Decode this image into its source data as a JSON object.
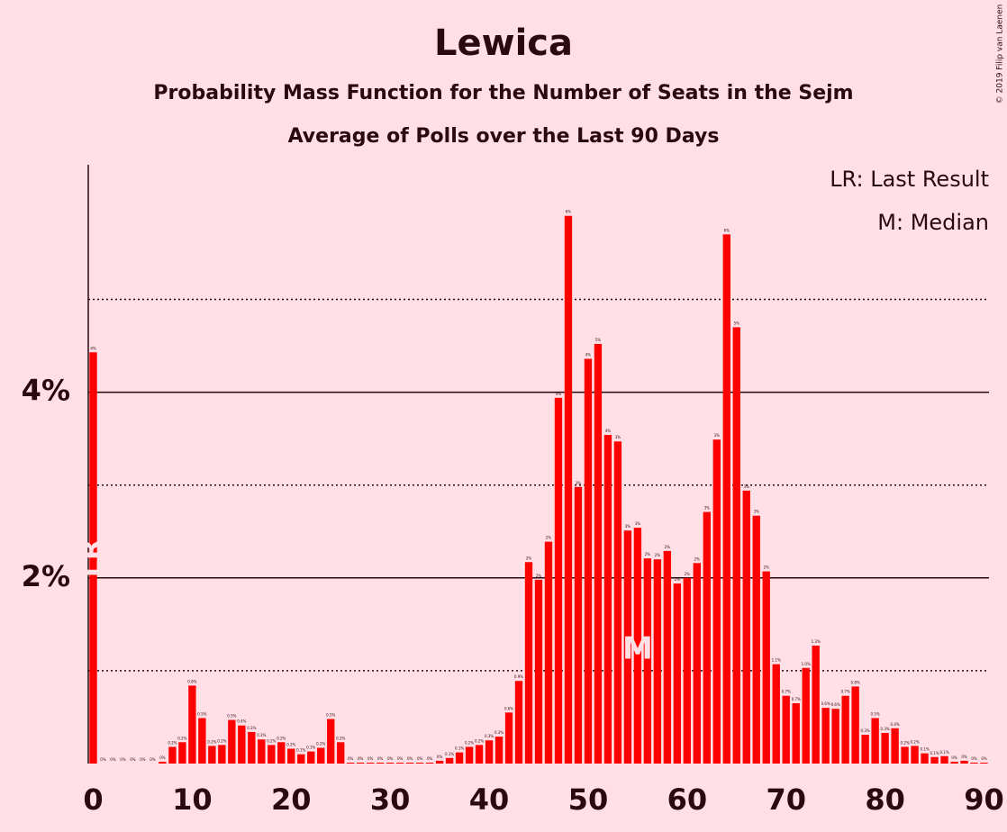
{
  "chart_data": {
    "type": "bar",
    "title": "Lewica",
    "subtitle": "Probability Mass Function for the Number of Seats in the Sejm",
    "subtitle2": "Average of Polls over the Last 90 Days",
    "copyright": "© 2019 Filip van Laenen",
    "legend": [
      "LR: Last Result",
      "M: Median"
    ],
    "markers": {
      "last_result": {
        "x": 0,
        "label": "LR"
      },
      "median": {
        "x": 55,
        "label": "M"
      }
    },
    "color": "#ff0000",
    "xlim": [
      -0.5,
      90.5
    ],
    "xticks": [
      0,
      10,
      20,
      30,
      40,
      50,
      60,
      70,
      80,
      90
    ],
    "ylim": [
      0,
      6.45
    ],
    "yticks": [
      {
        "value": 2,
        "label": "2%"
      },
      {
        "value": 4,
        "label": "4%"
      }
    ],
    "minor_yticks": [
      1,
      3,
      5
    ],
    "x": [
      0,
      1,
      2,
      3,
      4,
      5,
      6,
      7,
      8,
      9,
      10,
      11,
      12,
      13,
      14,
      15,
      16,
      17,
      18,
      19,
      20,
      21,
      22,
      23,
      24,
      25,
      26,
      27,
      28,
      29,
      30,
      31,
      32,
      33,
      34,
      35,
      36,
      37,
      38,
      39,
      40,
      41,
      42,
      43,
      44,
      45,
      46,
      47,
      48,
      49,
      50,
      51,
      52,
      53,
      54,
      55,
      56,
      57,
      58,
      59,
      60,
      61,
      62,
      63,
      64,
      65,
      66,
      67,
      68,
      69,
      70,
      71,
      72,
      73,
      74,
      75,
      76,
      77,
      78,
      79,
      80,
      81,
      82,
      83,
      84,
      85,
      86,
      87,
      88,
      89,
      90
    ],
    "values": [
      4.43,
      0,
      0,
      0,
      0,
      0,
      0,
      0.02,
      0.18,
      0.23,
      0.84,
      0.49,
      0.19,
      0.2,
      0.47,
      0.41,
      0.34,
      0.26,
      0.2,
      0.23,
      0.16,
      0.1,
      0.13,
      0.17,
      0.48,
      0.23,
      0.01,
      0.01,
      0.01,
      0.01,
      0.01,
      0.01,
      0.01,
      0.01,
      0.01,
      0.03,
      0.06,
      0.12,
      0.18,
      0.2,
      0.25,
      0.29,
      0.55,
      0.89,
      2.17,
      1.98,
      2.39,
      3.94,
      5.9,
      2.98,
      4.36,
      4.52,
      3.54,
      3.47,
      2.51,
      2.54,
      2.21,
      2.2,
      2.29,
      1.94,
      2.0,
      2.16,
      2.71,
      3.49,
      5.7,
      4.7,
      2.94,
      2.67,
      2.07,
      1.07,
      0.73,
      0.65,
      1.03,
      1.27,
      0.6,
      0.59,
      0.73,
      0.83,
      0.31,
      0.49,
      0.33,
      0.38,
      0.18,
      0.19,
      0.11,
      0.07,
      0.08,
      0.02,
      0.03,
      0.01,
      0.01
    ],
    "value_labels": [
      "4%",
      "0%",
      "0%",
      "0%",
      "0%",
      "0%",
      "0%",
      "0%",
      "0.2%",
      "0.2%",
      "0.8%",
      "0.5%",
      "0.2%",
      "0.2%",
      "0.5%",
      "0.4%",
      "0.3%",
      "0.3%",
      "0.2%",
      "0.2%",
      "0.2%",
      "0.1%",
      "0.1%",
      "0.2%",
      "0.5%",
      "0.2%",
      "0%",
      "0%",
      "0%",
      "0%",
      "0%",
      "0%",
      "0%",
      "0%",
      "0%",
      "0%",
      "0.1%",
      "0.1%",
      "0.2%",
      "0.2%",
      "0.3%",
      "0.3%",
      "0.6%",
      "0.9%",
      "2%",
      "2%",
      "2%",
      "4%",
      "6%",
      "3%",
      "4%",
      "5%",
      "4%",
      "3%",
      "3%",
      "3%",
      "2%",
      "2%",
      "2%",
      "2%",
      "2%",
      "2%",
      "3%",
      "3%",
      "6%",
      "5%",
      "3%",
      "3%",
      "2%",
      "1.1%",
      "0.7%",
      "0.7%",
      "1.0%",
      "1.3%",
      "0.6%",
      "0.6%",
      "0.7%",
      "0.8%",
      "0.3%",
      "0.5%",
      "0.3%",
      "0.4%",
      "0.2%",
      "0.2%",
      "0.1%",
      "0.1%",
      "0.1%",
      "0%",
      "0%",
      "0%",
      "0%"
    ]
  }
}
